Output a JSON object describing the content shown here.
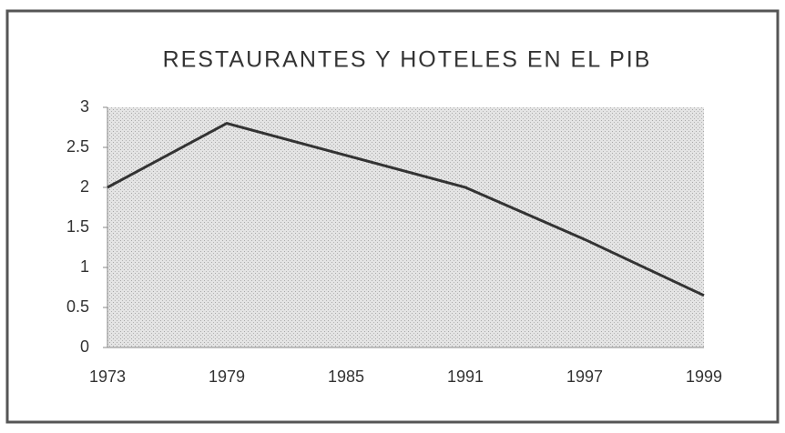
{
  "chart_data": {
    "type": "line",
    "title": "RESTAURANTES Y HOTELES EN EL PIB",
    "categories": [
      "1973",
      "1979",
      "1985",
      "1991",
      "1997",
      "1999"
    ],
    "values": [
      2,
      2.8,
      2.4,
      2.0,
      1.35,
      0.65
    ],
    "color": "#333333",
    "ylim": [
      0,
      3
    ],
    "yticks": [
      0,
      0.5,
      1,
      1.5,
      2,
      2.5,
      3
    ],
    "grid": false
  }
}
